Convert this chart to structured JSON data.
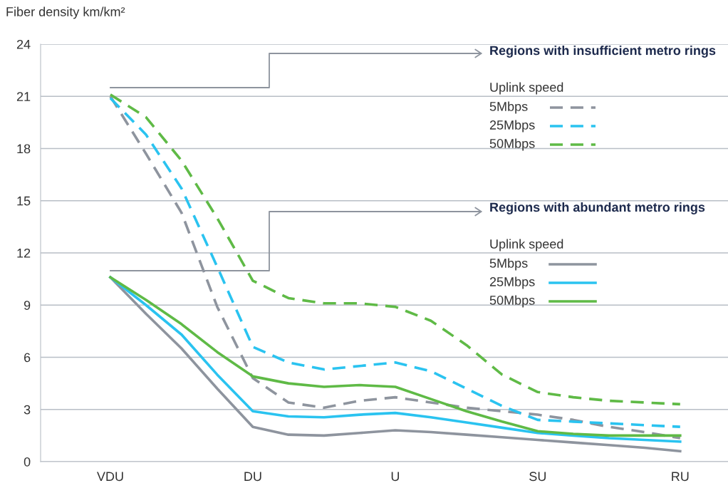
{
  "chart_data": {
    "type": "line",
    "ylabel": "Fiber density km/km²",
    "categories": [
      "VDU",
      null,
      null,
      null,
      "DU",
      null,
      null,
      null,
      "U",
      null,
      null,
      null,
      "SU",
      null,
      null,
      null,
      "RU"
    ],
    "ylim": [
      0,
      24
    ],
    "yticks": [
      0,
      3,
      6,
      9,
      12,
      15,
      18,
      21,
      24
    ],
    "grid": "y",
    "legend": "right",
    "marker": "none",
    "annotations": [
      "Regions with insufficient metro rings",
      "Uplink speed",
      "Regions with abundant metro rings",
      "Uplink speed"
    ],
    "series": [
      {
        "name": "5Mbps",
        "color": "#8e949e",
        "line_style": "dashed",
        "values": [
          21.0,
          17.7,
          14.3,
          8.9,
          4.8,
          3.4,
          3.1,
          3.5,
          3.7,
          3.4,
          3.1,
          2.9,
          2.7,
          2.4,
          2.0,
          1.7,
          1.35
        ]
      },
      {
        "name": "25Mbps",
        "color": "#2ac3f0",
        "line_style": "dashed",
        "values": [
          20.9,
          18.8,
          15.7,
          11.2,
          6.6,
          5.7,
          5.3,
          5.5,
          5.7,
          5.2,
          4.2,
          3.2,
          2.4,
          2.3,
          2.2,
          2.1,
          2.0
        ]
      },
      {
        "name": "50Mbps",
        "color": "#5fba46",
        "line_style": "dashed",
        "values": [
          21.1,
          19.8,
          17.3,
          14.0,
          10.4,
          9.4,
          9.1,
          9.1,
          8.9,
          8.1,
          6.7,
          5.0,
          4.0,
          3.7,
          3.5,
          3.4,
          3.3
        ]
      },
      {
        "name": "5Mbps",
        "color": "#8e949e",
        "line_style": "solid",
        "values": [
          10.6,
          8.5,
          6.5,
          4.2,
          2.0,
          1.55,
          1.5,
          1.65,
          1.8,
          1.7,
          1.55,
          1.4,
          1.25,
          1.1,
          0.95,
          0.8,
          0.6
        ]
      },
      {
        "name": "25Mbps",
        "color": "#2ac3f0",
        "line_style": "solid",
        "values": [
          10.6,
          9.0,
          7.3,
          5.0,
          2.9,
          2.6,
          2.55,
          2.7,
          2.8,
          2.55,
          2.25,
          1.95,
          1.65,
          1.5,
          1.35,
          1.25,
          1.15
        ]
      },
      {
        "name": "50Mbps",
        "color": "#5fba46",
        "line_style": "solid",
        "values": [
          10.6,
          9.3,
          7.9,
          6.3,
          4.9,
          4.5,
          4.3,
          4.4,
          4.3,
          3.6,
          2.9,
          2.3,
          1.75,
          1.6,
          1.5,
          1.5,
          1.5
        ]
      }
    ]
  }
}
